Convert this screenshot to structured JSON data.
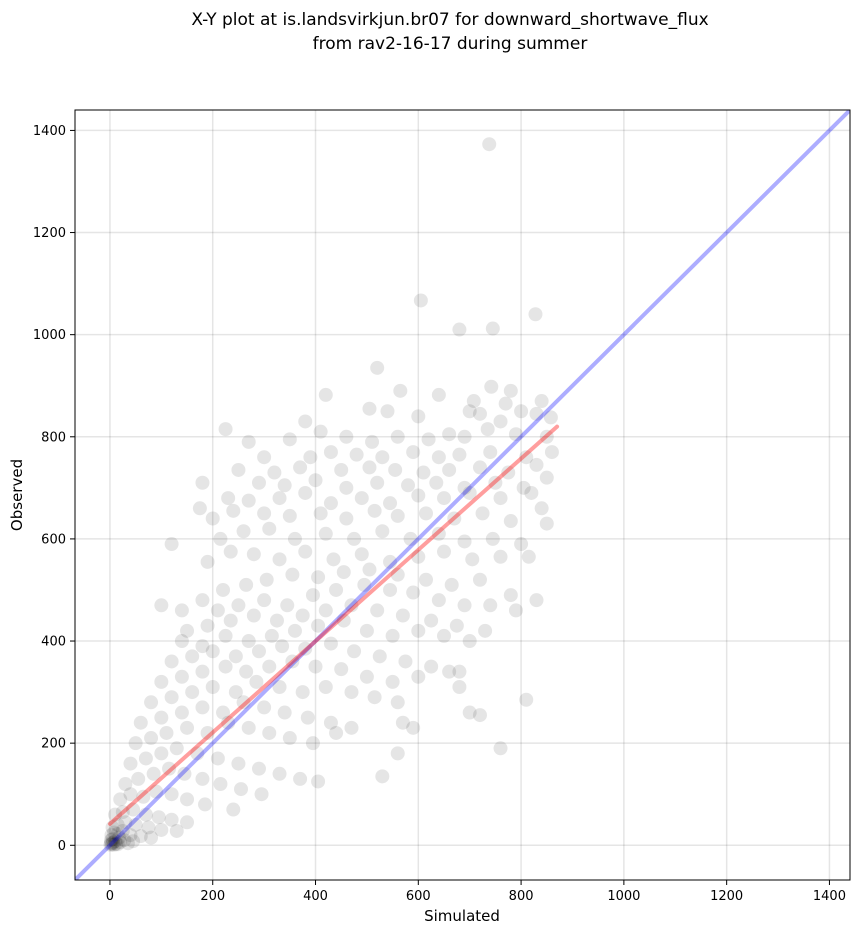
{
  "chart_data": {
    "type": "scatter",
    "title_line1": "X-Y plot at is.landsvirkjun.br07 for downward_shortwave_flux",
    "title_line2": "from rav2-16-17 during summer",
    "xlabel": "Simulated",
    "ylabel": "Observed",
    "xlim": [
      -68,
      1440
    ],
    "ylim": [
      -68,
      1440
    ],
    "xticks": [
      0,
      200,
      400,
      600,
      800,
      1000,
      1200,
      1400
    ],
    "yticks": [
      0,
      200,
      400,
      600,
      800,
      1000,
      1200,
      1400
    ],
    "grid": true,
    "point_color": "#000000",
    "point_opacity": 0.1,
    "identity_line": {
      "color": "#0000ff",
      "from": [
        -68,
        -68
      ],
      "to": [
        1440,
        1440
      ]
    },
    "regression_line": {
      "color": "#ff0000",
      "from": [
        0,
        42
      ],
      "to": [
        870,
        820
      ]
    },
    "points": [
      [
        738,
        1373
      ],
      [
        605,
        1067
      ],
      [
        680,
        1010
      ],
      [
        745,
        1012
      ],
      [
        828,
        1040
      ],
      [
        520,
        935
      ],
      [
        565,
        890
      ],
      [
        742,
        898
      ],
      [
        420,
        882
      ],
      [
        640,
        882
      ],
      [
        708,
        870
      ],
      [
        780,
        890
      ],
      [
        770,
        865
      ],
      [
        840,
        870
      ],
      [
        225,
        815
      ],
      [
        380,
        830
      ],
      [
        505,
        855
      ],
      [
        540,
        850
      ],
      [
        600,
        840
      ],
      [
        700,
        850
      ],
      [
        720,
        845
      ],
      [
        760,
        830
      ],
      [
        800,
        850
      ],
      [
        830,
        845
      ],
      [
        858,
        838
      ],
      [
        270,
        790
      ],
      [
        350,
        795
      ],
      [
        410,
        810
      ],
      [
        460,
        800
      ],
      [
        510,
        790
      ],
      [
        560,
        800
      ],
      [
        620,
        795
      ],
      [
        660,
        805
      ],
      [
        690,
        800
      ],
      [
        735,
        815
      ],
      [
        790,
        805
      ],
      [
        850,
        800
      ],
      [
        300,
        760
      ],
      [
        390,
        760
      ],
      [
        430,
        770
      ],
      [
        480,
        765
      ],
      [
        530,
        760
      ],
      [
        590,
        770
      ],
      [
        640,
        760
      ],
      [
        680,
        765
      ],
      [
        740,
        770
      ],
      [
        810,
        760
      ],
      [
        860,
        770
      ],
      [
        250,
        735
      ],
      [
        320,
        730
      ],
      [
        370,
        740
      ],
      [
        450,
        735
      ],
      [
        505,
        740
      ],
      [
        555,
        735
      ],
      [
        610,
        730
      ],
      [
        660,
        735
      ],
      [
        720,
        740
      ],
      [
        775,
        730
      ],
      [
        830,
        745
      ],
      [
        180,
        710
      ],
      [
        290,
        710
      ],
      [
        340,
        705
      ],
      [
        400,
        715
      ],
      [
        460,
        700
      ],
      [
        520,
        710
      ],
      [
        580,
        705
      ],
      [
        635,
        710
      ],
      [
        690,
        700
      ],
      [
        750,
        710
      ],
      [
        805,
        700
      ],
      [
        850,
        720
      ],
      [
        230,
        680
      ],
      [
        270,
        675
      ],
      [
        330,
        680
      ],
      [
        380,
        690
      ],
      [
        430,
        670
      ],
      [
        490,
        680
      ],
      [
        545,
        670
      ],
      [
        600,
        685
      ],
      [
        650,
        680
      ],
      [
        700,
        690
      ],
      [
        760,
        680
      ],
      [
        820,
        690
      ],
      [
        175,
        660
      ],
      [
        200,
        640
      ],
      [
        240,
        655
      ],
      [
        300,
        650
      ],
      [
        350,
        645
      ],
      [
        410,
        650
      ],
      [
        460,
        640
      ],
      [
        515,
        655
      ],
      [
        560,
        645
      ],
      [
        615,
        650
      ],
      [
        670,
        640
      ],
      [
        725,
        650
      ],
      [
        780,
        635
      ],
      [
        840,
        660
      ],
      [
        120,
        590
      ],
      [
        215,
        600
      ],
      [
        260,
        615
      ],
      [
        310,
        620
      ],
      [
        360,
        600
      ],
      [
        420,
        610
      ],
      [
        475,
        600
      ],
      [
        530,
        615
      ],
      [
        585,
        600
      ],
      [
        640,
        610
      ],
      [
        690,
        595
      ],
      [
        745,
        600
      ],
      [
        800,
        590
      ],
      [
        850,
        630
      ],
      [
        190,
        555
      ],
      [
        235,
        575
      ],
      [
        280,
        570
      ],
      [
        330,
        560
      ],
      [
        380,
        575
      ],
      [
        435,
        560
      ],
      [
        490,
        570
      ],
      [
        545,
        555
      ],
      [
        600,
        565
      ],
      [
        650,
        575
      ],
      [
        705,
        560
      ],
      [
        760,
        565
      ],
      [
        815,
        565
      ],
      [
        100,
        470
      ],
      [
        140,
        460
      ],
      [
        180,
        480
      ],
      [
        220,
        500
      ],
      [
        265,
        510
      ],
      [
        305,
        520
      ],
      [
        355,
        530
      ],
      [
        405,
        525
      ],
      [
        455,
        535
      ],
      [
        505,
        540
      ],
      [
        560,
        530
      ],
      [
        615,
        520
      ],
      [
        665,
        510
      ],
      [
        720,
        520
      ],
      [
        780,
        490
      ],
      [
        830,
        480
      ],
      [
        210,
        460
      ],
      [
        250,
        470
      ],
      [
        300,
        480
      ],
      [
        345,
        470
      ],
      [
        395,
        490
      ],
      [
        440,
        500
      ],
      [
        495,
        510
      ],
      [
        545,
        500
      ],
      [
        590,
        495
      ],
      [
        640,
        480
      ],
      [
        690,
        470
      ],
      [
        740,
        470
      ],
      [
        790,
        460
      ],
      [
        150,
        420
      ],
      [
        190,
        430
      ],
      [
        235,
        440
      ],
      [
        280,
        450
      ],
      [
        325,
        440
      ],
      [
        375,
        450
      ],
      [
        420,
        460
      ],
      [
        470,
        470
      ],
      [
        520,
        460
      ],
      [
        570,
        450
      ],
      [
        625,
        440
      ],
      [
        675,
        430
      ],
      [
        730,
        420
      ],
      [
        140,
        400
      ],
      [
        180,
        390
      ],
      [
        225,
        410
      ],
      [
        270,
        400
      ],
      [
        315,
        410
      ],
      [
        360,
        420
      ],
      [
        405,
        430
      ],
      [
        455,
        440
      ],
      [
        500,
        420
      ],
      [
        550,
        410
      ],
      [
        600,
        420
      ],
      [
        650,
        410
      ],
      [
        700,
        400
      ],
      [
        120,
        360
      ],
      [
        160,
        370
      ],
      [
        200,
        380
      ],
      [
        245,
        370
      ],
      [
        290,
        380
      ],
      [
        335,
        390
      ],
      [
        380,
        385
      ],
      [
        430,
        395
      ],
      [
        475,
        380
      ],
      [
        525,
        370
      ],
      [
        575,
        360
      ],
      [
        625,
        350
      ],
      [
        680,
        340
      ],
      [
        100,
        320
      ],
      [
        140,
        330
      ],
      [
        180,
        340
      ],
      [
        225,
        350
      ],
      [
        265,
        340
      ],
      [
        310,
        350
      ],
      [
        355,
        360
      ],
      [
        400,
        350
      ],
      [
        450,
        345
      ],
      [
        500,
        330
      ],
      [
        550,
        320
      ],
      [
        600,
        330
      ],
      [
        660,
        340
      ],
      [
        680,
        310
      ],
      [
        80,
        280
      ],
      [
        120,
        290
      ],
      [
        160,
        300
      ],
      [
        200,
        310
      ],
      [
        245,
        300
      ],
      [
        285,
        320
      ],
      [
        330,
        310
      ],
      [
        375,
        300
      ],
      [
        420,
        310
      ],
      [
        470,
        300
      ],
      [
        515,
        290
      ],
      [
        560,
        280
      ],
      [
        700,
        260
      ],
      [
        720,
        255
      ],
      [
        810,
        285
      ],
      [
        60,
        240
      ],
      [
        100,
        250
      ],
      [
        140,
        260
      ],
      [
        180,
        270
      ],
      [
        220,
        260
      ],
      [
        260,
        280
      ],
      [
        300,
        270
      ],
      [
        340,
        260
      ],
      [
        385,
        250
      ],
      [
        430,
        240
      ],
      [
        470,
        230
      ],
      [
        570,
        240
      ],
      [
        590,
        230
      ],
      [
        760,
        190
      ],
      [
        50,
        200
      ],
      [
        80,
        210
      ],
      [
        110,
        220
      ],
      [
        150,
        230
      ],
      [
        190,
        220
      ],
      [
        230,
        240
      ],
      [
        270,
        230
      ],
      [
        310,
        220
      ],
      [
        350,
        210
      ],
      [
        395,
        200
      ],
      [
        440,
        220
      ],
      [
        560,
        180
      ],
      [
        40,
        160
      ],
      [
        70,
        170
      ],
      [
        100,
        180
      ],
      [
        130,
        190
      ],
      [
        170,
        180
      ],
      [
        210,
        170
      ],
      [
        250,
        160
      ],
      [
        290,
        150
      ],
      [
        330,
        140
      ],
      [
        370,
        130
      ],
      [
        405,
        125
      ],
      [
        530,
        135
      ],
      [
        30,
        120
      ],
      [
        55,
        130
      ],
      [
        85,
        140
      ],
      [
        115,
        150
      ],
      [
        145,
        140
      ],
      [
        180,
        130
      ],
      [
        215,
        120
      ],
      [
        255,
        110
      ],
      [
        295,
        100
      ],
      [
        20,
        90
      ],
      [
        40,
        100
      ],
      [
        65,
        95
      ],
      [
        90,
        105
      ],
      [
        120,
        100
      ],
      [
        150,
        90
      ],
      [
        185,
        80
      ],
      [
        240,
        70
      ],
      [
        10,
        60
      ],
      [
        25,
        65
      ],
      [
        45,
        70
      ],
      [
        70,
        60
      ],
      [
        95,
        55
      ],
      [
        120,
        50
      ],
      [
        150,
        45
      ],
      [
        5,
        35
      ],
      [
        15,
        40
      ],
      [
        30,
        45
      ],
      [
        50,
        40
      ],
      [
        75,
        35
      ],
      [
        100,
        30
      ],
      [
        130,
        28
      ],
      [
        3,
        20
      ],
      [
        8,
        25
      ],
      [
        15,
        22
      ],
      [
        25,
        28
      ],
      [
        40,
        20
      ],
      [
        60,
        18
      ],
      [
        80,
        15
      ],
      [
        2,
        10
      ],
      [
        5,
        12
      ],
      [
        10,
        8
      ],
      [
        18,
        15
      ],
      [
        28,
        10
      ],
      [
        45,
        8
      ],
      [
        2,
        4
      ],
      [
        6,
        5
      ],
      [
        12,
        3
      ],
      [
        20,
        6
      ],
      [
        35,
        4
      ],
      [
        1,
        1
      ],
      [
        4,
        2
      ],
      [
        8,
        1
      ],
      [
        15,
        2
      ]
    ]
  }
}
